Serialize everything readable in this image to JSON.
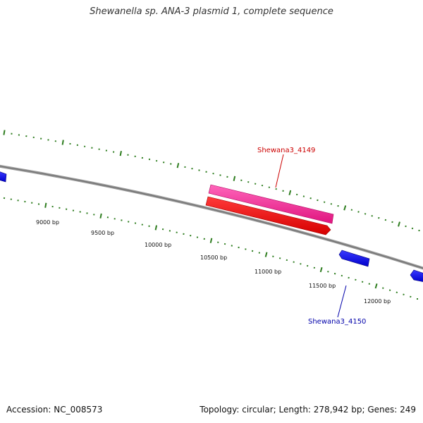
{
  "title": "Shewanella sp. ANA-3 plasmid 1, complete sequence",
  "footer": {
    "accession": "Accession: NC_008573",
    "summary": "Topology: circular; Length: 278,942 bp; Genes: 249"
  },
  "ruler": {
    "labels": [
      "9000 bp",
      "9500 bp",
      "10000 bp",
      "10500 bp",
      "11000 bp",
      "11500 bp",
      "12000 bp"
    ]
  },
  "genes": [
    {
      "label": "Shewana3_4149",
      "color": "#cc0000",
      "bar_colors": [
        "#ff3399",
        "#ff0000"
      ]
    },
    {
      "label": "Shewana3_4150",
      "color": "#0000aa",
      "bar_color": "#1a1aff"
    }
  ],
  "colors": {
    "backbone": "#8c8c8c",
    "tick": "#2e7d1f"
  }
}
